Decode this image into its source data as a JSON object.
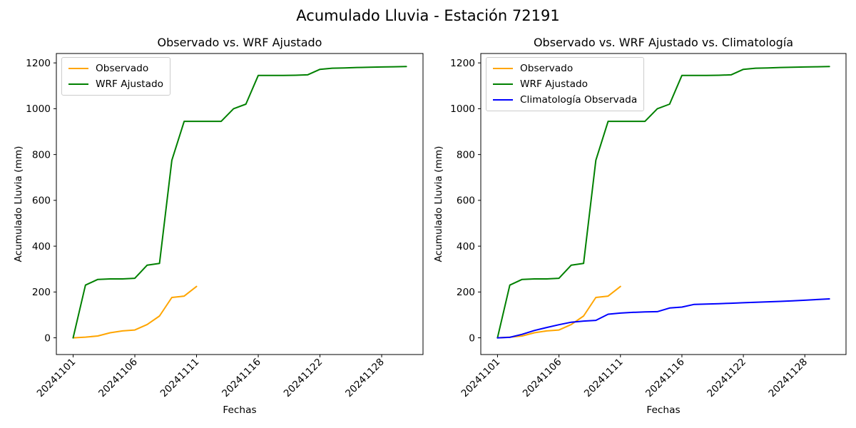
{
  "figure": {
    "suptitle": "Acumulado Lluvia - Estación 72191",
    "background_color": "#ffffff",
    "text_color": "#000000"
  },
  "chart_data": [
    {
      "type": "line",
      "title": "Observado vs. WRF Ajustado",
      "xlabel": "Fechas",
      "ylabel": "Acumulado Lluvia (mm)",
      "grid": false,
      "legend_position": "upper left",
      "tick_rotation": 45,
      "ylim": [
        -73,
        1241
      ],
      "xlim_index": [
        -1.36,
        28.35
      ],
      "yticks": [
        0,
        200,
        400,
        600,
        800,
        1000,
        1200
      ],
      "xticks": [
        {
          "index": 0,
          "label": "20241101"
        },
        {
          "index": 5,
          "label": "20241106"
        },
        {
          "index": 10,
          "label": "20241111"
        },
        {
          "index": 15,
          "label": "20241116"
        },
        {
          "index": 20,
          "label": "20241122"
        },
        {
          "index": 25,
          "label": "20241128"
        }
      ],
      "series": [
        {
          "name": "Observado",
          "color": "#ffa500",
          "x": [
            0,
            1,
            2,
            3,
            4,
            5,
            6,
            7,
            8,
            9,
            10
          ],
          "values": [
            0,
            3,
            8,
            22,
            30,
            34,
            58,
            95,
            176,
            182,
            224
          ]
        },
        {
          "name": "WRF Ajustado",
          "color": "#008000",
          "x": [
            0,
            1,
            2,
            3,
            4,
            5,
            6,
            7,
            8,
            9,
            10,
            11,
            12,
            13,
            14,
            15,
            16,
            17,
            18,
            19,
            20,
            21,
            22,
            23,
            24,
            25,
            26,
            27
          ],
          "values": [
            0,
            230,
            255,
            257,
            257,
            260,
            317,
            325,
            775,
            945,
            945,
            945,
            945,
            1000,
            1020,
            1145,
            1145,
            1145,
            1146,
            1148,
            1172,
            1177,
            1178,
            1180,
            1181,
            1182,
            1183,
            1184
          ]
        }
      ]
    },
    {
      "type": "line",
      "title": "Observado vs. WRF Ajustado vs. Climatología",
      "xlabel": "Fechas",
      "ylabel": "Acumulado Lluvia (mm)",
      "grid": false,
      "legend_position": "upper left",
      "tick_rotation": 45,
      "ylim": [
        -73,
        1241
      ],
      "xlim_index": [
        -1.36,
        28.35
      ],
      "yticks": [
        0,
        200,
        400,
        600,
        800,
        1000,
        1200
      ],
      "xticks": [
        {
          "index": 0,
          "label": "20241101"
        },
        {
          "index": 5,
          "label": "20241106"
        },
        {
          "index": 10,
          "label": "20241111"
        },
        {
          "index": 15,
          "label": "20241116"
        },
        {
          "index": 20,
          "label": "20241122"
        },
        {
          "index": 25,
          "label": "20241128"
        }
      ],
      "series": [
        {
          "name": "Observado",
          "color": "#ffa500",
          "x": [
            0,
            1,
            2,
            3,
            4,
            5,
            6,
            7,
            8,
            9,
            10
          ],
          "values": [
            0,
            3,
            8,
            22,
            30,
            34,
            58,
            95,
            176,
            182,
            224
          ]
        },
        {
          "name": "WRF Ajustado",
          "color": "#008000",
          "x": [
            0,
            1,
            2,
            3,
            4,
            5,
            6,
            7,
            8,
            9,
            10,
            11,
            12,
            13,
            14,
            15,
            16,
            17,
            18,
            19,
            20,
            21,
            22,
            23,
            24,
            25,
            26,
            27
          ],
          "values": [
            0,
            230,
            255,
            257,
            257,
            260,
            317,
            325,
            775,
            945,
            945,
            945,
            945,
            1000,
            1020,
            1145,
            1145,
            1145,
            1146,
            1148,
            1172,
            1177,
            1178,
            1180,
            1181,
            1182,
            1183,
            1184
          ]
        },
        {
          "name": "Climatología Observada",
          "color": "#0000ff",
          "x": [
            0,
            1,
            2,
            3,
            4,
            5,
            6,
            7,
            8,
            9,
            10,
            11,
            12,
            13,
            14,
            15,
            16,
            17,
            18,
            19,
            20,
            21,
            22,
            23,
            24,
            25,
            26,
            27
          ],
          "values": [
            0,
            2,
            15,
            32,
            45,
            57,
            68,
            73,
            76,
            103,
            108,
            111,
            113,
            114,
            130,
            134,
            146,
            147,
            149,
            151,
            153,
            155,
            157,
            159,
            161,
            164,
            167,
            170
          ]
        }
      ]
    }
  ]
}
